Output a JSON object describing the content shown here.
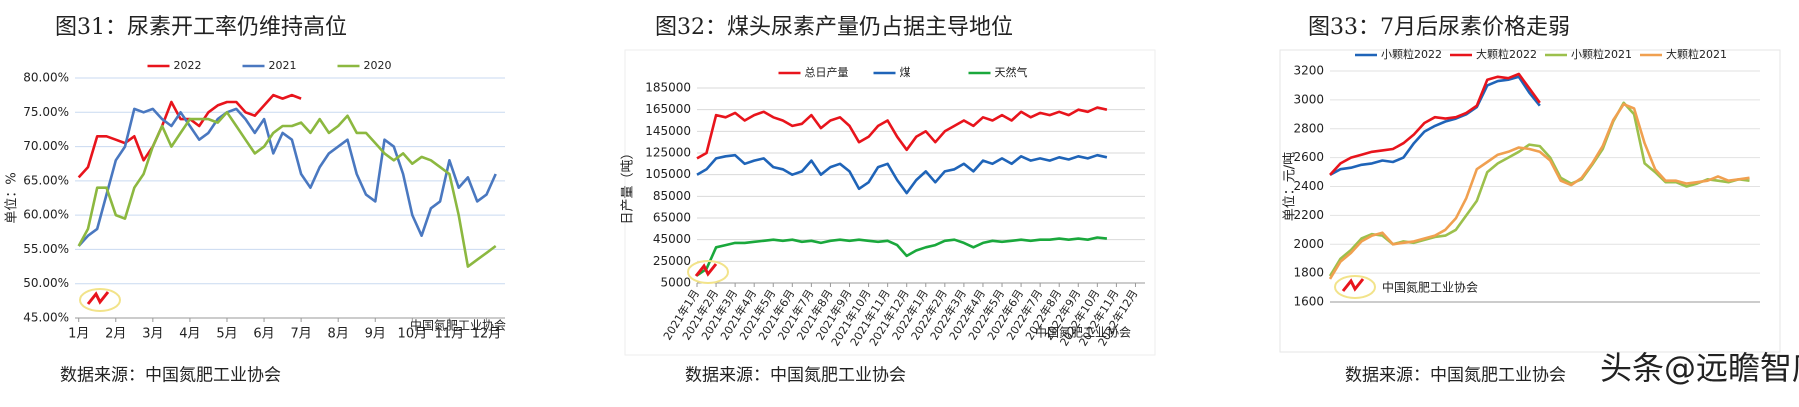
{
  "chart_data": [
    {
      "type": "line",
      "title": "图31：尿素开工率仍维持高位",
      "y_label": "单位：%",
      "source": "数据来源：中国氮肥工业协会",
      "annotations": [
        "中国氮肥工业协会"
      ],
      "grid": true,
      "xlim": [
        0.9,
        12.5
      ],
      "ylim": [
        45,
        80
      ],
      "yticks": [
        {
          "value": 45,
          "label": "45.00%"
        },
        {
          "value": 50,
          "label": "50.00%"
        },
        {
          "value": 55,
          "label": "55.00%"
        },
        {
          "value": 60,
          "label": "60.00%"
        },
        {
          "value": 65,
          "label": "65.00%"
        },
        {
          "value": 70,
          "label": "70.00%"
        },
        {
          "value": 75,
          "label": "75.00%"
        },
        {
          "value": 80,
          "label": "80.00%"
        }
      ],
      "xticks": [
        {
          "value": 1,
          "label": "1月"
        },
        {
          "value": 2,
          "label": "2月"
        },
        {
          "value": 3,
          "label": "3月"
        },
        {
          "value": 4,
          "label": "4月"
        },
        {
          "value": 5,
          "label": "5月"
        },
        {
          "value": 6,
          "label": "6月"
        },
        {
          "value": 7,
          "label": "7月"
        },
        {
          "value": 8,
          "label": "8月"
        },
        {
          "value": 9,
          "label": "9月"
        },
        {
          "value": 10,
          "label": "10月"
        },
        {
          "value": 11,
          "label": "11月"
        },
        {
          "value": 12,
          "label": "12月"
        }
      ],
      "x": [
        1,
        1.25,
        1.5,
        1.75,
        2,
        2.25,
        2.5,
        2.75,
        3,
        3.25,
        3.5,
        3.75,
        4,
        4.25,
        4.5,
        4.75,
        5,
        5.25,
        5.5,
        5.75,
        6,
        6.25,
        6.5,
        6.75,
        7,
        7.25,
        7.5,
        7.75,
        8,
        8.25,
        8.5,
        8.75,
        9,
        9.25,
        9.5,
        9.75,
        10,
        10.25,
        10.5,
        10.75,
        11,
        11.25,
        11.5,
        11.75,
        12,
        12.25
      ],
      "series": [
        {
          "name": "2022",
          "color": "#e8141c",
          "values": [
            65.5,
            67,
            71.5,
            71.5,
            71,
            70.5,
            71.5,
            68,
            70,
            73,
            76.5,
            74,
            74,
            73,
            75,
            76,
            76.5,
            76.5,
            75,
            74.5,
            76,
            77.5,
            77,
            77.5,
            77,
            null,
            null,
            null,
            null,
            null,
            null,
            null,
            null,
            null,
            null,
            null,
            null,
            null,
            null,
            null,
            null,
            null,
            null,
            null,
            null,
            null
          ]
        },
        {
          "name": "2021",
          "color": "#4a78c0",
          "values": [
            55.5,
            57,
            58,
            63,
            68,
            70,
            75.5,
            75,
            75.5,
            74,
            73,
            75,
            73,
            71,
            72,
            74,
            75,
            75.5,
            74,
            72,
            74,
            69,
            72,
            71,
            66,
            64,
            67,
            69,
            70,
            71,
            66,
            63,
            62,
            71,
            70,
            66,
            60,
            57,
            61,
            62,
            68,
            64,
            65.5,
            62,
            63,
            66
          ]
        },
        {
          "name": "2020",
          "color": "#8cb840",
          "values": [
            55.5,
            58,
            64,
            64,
            60,
            59.5,
            64,
            66,
            70,
            73,
            70,
            72,
            74,
            74,
            74,
            73.5,
            75,
            73,
            71,
            69,
            70,
            72,
            73,
            73,
            73.5,
            72,
            74,
            72,
            73,
            74.5,
            72,
            72,
            70.5,
            69,
            68,
            69,
            67.5,
            68.5,
            68,
            67,
            66,
            60,
            52.5,
            53.5,
            54.5,
            55.5
          ]
        }
      ]
    },
    {
      "type": "line",
      "title": "图32：煤头尿素产量仍占据主导地位",
      "y_label": "日产量（吨）",
      "source": "数据来源：中国氮肥工业协会",
      "annotations": [
        "中国氮肥工业协会"
      ],
      "grid": true,
      "xlim": [
        0,
        23.5
      ],
      "ylim": [
        5000,
        185000
      ],
      "yticks": [
        5000,
        25000,
        45000,
        65000,
        85000,
        105000,
        125000,
        145000,
        165000,
        185000
      ],
      "xticks": [
        {
          "value": 0,
          "label": "2021年1月"
        },
        {
          "value": 1,
          "label": "2021年2月"
        },
        {
          "value": 2,
          "label": "2021年3月"
        },
        {
          "value": 3,
          "label": "2021年4月"
        },
        {
          "value": 4,
          "label": "2021年5月"
        },
        {
          "value": 5,
          "label": "2021年6月"
        },
        {
          "value": 6,
          "label": "2021年7月"
        },
        {
          "value": 7,
          "label": "2021年8月"
        },
        {
          "value": 8,
          "label": "2021年9月"
        },
        {
          "value": 9,
          "label": "2021年10月"
        },
        {
          "value": 10,
          "label": "2021年11月"
        },
        {
          "value": 11,
          "label": "2021年12月"
        },
        {
          "value": 12,
          "label": "2022年1月"
        },
        {
          "value": 13,
          "label": "2022年2月"
        },
        {
          "value": 14,
          "label": "2022年3月"
        },
        {
          "value": 15,
          "label": "2022年4月"
        },
        {
          "value": 16,
          "label": "2022年5月"
        },
        {
          "value": 17,
          "label": "2022年6月"
        },
        {
          "value": 18,
          "label": "2022年7月"
        },
        {
          "value": 19,
          "label": "2022年8月"
        },
        {
          "value": 20,
          "label": "2022年9月"
        },
        {
          "value": 21,
          "label": "2022年10月"
        },
        {
          "value": 22,
          "label": "2022年11月"
        },
        {
          "value": 23,
          "label": "2022年12月"
        }
      ],
      "x": [
        0,
        0.5,
        1,
        1.5,
        2,
        2.5,
        3,
        3.5,
        4,
        4.5,
        5,
        5.5,
        6,
        6.5,
        7,
        7.5,
        8,
        8.5,
        9,
        9.5,
        10,
        10.5,
        11,
        11.5,
        12,
        12.5,
        13,
        13.5,
        14,
        14.5,
        15,
        15.5,
        16,
        16.5,
        17,
        17.5,
        18,
        18.5,
        19,
        19.5,
        20,
        20.5,
        21,
        21.5
      ],
      "series": [
        {
          "name": "总日产量",
          "color": "#e8141c",
          "values": [
            120000,
            125000,
            160000,
            158000,
            162000,
            155000,
            160000,
            163000,
            158000,
            155000,
            150000,
            152000,
            160000,
            148000,
            155000,
            158000,
            150000,
            135000,
            140000,
            150000,
            155000,
            140000,
            128000,
            140000,
            145000,
            135000,
            145000,
            150000,
            155000,
            150000,
            158000,
            155000,
            160000,
            155000,
            163000,
            158000,
            162000,
            160000,
            163000,
            160000,
            165000,
            163000,
            167000,
            165000
          ]
        },
        {
          "name": "煤",
          "color": "#1f64b8",
          "values": [
            105000,
            110000,
            120000,
            122000,
            123000,
            115000,
            118000,
            120000,
            112000,
            110000,
            105000,
            108000,
            118000,
            105000,
            112000,
            115000,
            108000,
            92000,
            98000,
            112000,
            115000,
            100000,
            88000,
            100000,
            108000,
            98000,
            108000,
            110000,
            115000,
            108000,
            118000,
            115000,
            120000,
            115000,
            122000,
            118000,
            120000,
            118000,
            121000,
            119000,
            122000,
            120000,
            123000,
            121000
          ]
        },
        {
          "name": "天然气",
          "color": "#1aa83c",
          "values": [
            12000,
            18000,
            38000,
            40000,
            42000,
            42000,
            43000,
            44000,
            45000,
            44000,
            45000,
            43000,
            44000,
            42000,
            44000,
            45000,
            44000,
            45000,
            44000,
            43000,
            44000,
            40000,
            30000,
            35000,
            38000,
            40000,
            44000,
            45000,
            42000,
            38000,
            42000,
            44000,
            43000,
            44000,
            45000,
            44000,
            45000,
            45000,
            46000,
            45000,
            46000,
            45000,
            47000,
            46000
          ]
        }
      ]
    },
    {
      "type": "line",
      "title": "图33：7月后尿素价格走弱",
      "y_label": "单位：元/吨",
      "source": "数据来源：中国氮肥工业协会",
      "annotations": [
        "中国氮肥工业协会"
      ],
      "grid": true,
      "xlim": [
        0,
        41
      ],
      "ylim": [
        1600,
        3200
      ],
      "yticks": [
        1600,
        1800,
        2000,
        2200,
        2400,
        2600,
        2800,
        3000,
        3200
      ],
      "x": [
        0,
        1,
        2,
        3,
        4,
        5,
        6,
        7,
        8,
        9,
        10,
        11,
        12,
        13,
        14,
        15,
        16,
        17,
        18,
        19,
        20,
        21,
        22,
        23,
        24,
        25,
        26,
        27,
        28,
        29,
        30,
        31,
        32,
        33,
        34,
        35,
        36,
        37,
        38,
        39,
        40
      ],
      "series": [
        {
          "name": "小颗粒2022",
          "color": "#1f64b8",
          "values": [
            2480,
            2520,
            2530,
            2550,
            2560,
            2580,
            2570,
            2600,
            2700,
            2780,
            2820,
            2850,
            2870,
            2900,
            2950,
            3100,
            3130,
            3140,
            3160,
            3050,
            2960,
            null,
            null,
            null,
            null,
            null,
            null,
            null,
            null,
            null,
            null,
            null,
            null,
            null,
            null,
            null,
            null,
            null,
            null,
            null,
            null
          ]
        },
        {
          "name": "大颗粒2022",
          "color": "#e8141c",
          "values": [
            2480,
            2560,
            2600,
            2620,
            2640,
            2650,
            2660,
            2700,
            2760,
            2840,
            2880,
            2870,
            2880,
            2910,
            2960,
            3140,
            3160,
            3150,
            3180,
            3080,
            2980,
            null,
            null,
            null,
            null,
            null,
            null,
            null,
            null,
            null,
            null,
            null,
            null,
            null,
            null,
            null,
            null,
            null,
            null,
            null,
            null
          ]
        },
        {
          "name": "小颗粒2021",
          "color": "#9cc04c",
          "values": [
            1780,
            1900,
            1960,
            2040,
            2070,
            2060,
            2000,
            2020,
            2010,
            2030,
            2050,
            2060,
            2100,
            2200,
            2300,
            2500,
            2560,
            2600,
            2640,
            2690,
            2680,
            2600,
            2460,
            2420,
            2450,
            2550,
            2660,
            2850,
            2980,
            2900,
            2560,
            2500,
            2430,
            2430,
            2400,
            2420,
            2450,
            2440,
            2430,
            2450,
            2440
          ]
        },
        {
          "name": "大颗粒2021",
          "color": "#f0a050",
          "values": [
            1760,
            1880,
            1940,
            2020,
            2060,
            2080,
            2000,
            2010,
            2020,
            2040,
            2060,
            2100,
            2180,
            2320,
            2520,
            2570,
            2620,
            2640,
            2670,
            2660,
            2640,
            2580,
            2440,
            2410,
            2460,
            2560,
            2680,
            2860,
            2970,
            2940,
            2700,
            2520,
            2440,
            2440,
            2420,
            2430,
            2440,
            2470,
            2440,
            2450,
            2460
          ]
        }
      ]
    }
  ],
  "overlay_watermark": "头条@远瞻智库"
}
